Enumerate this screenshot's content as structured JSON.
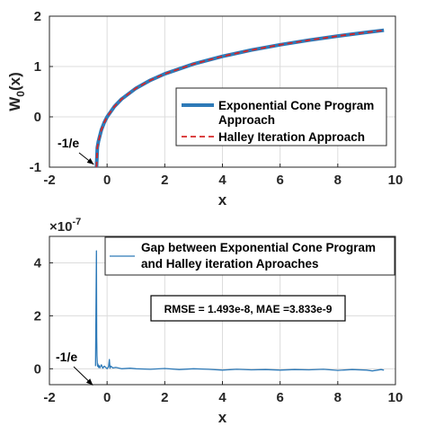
{
  "chart_data": [
    {
      "type": "line",
      "xlabel": "x",
      "ylabel": "W",
      "ylabel_sub": "0",
      "ylabel_suffix": "(x)",
      "xlim": [
        -2,
        10
      ],
      "ylim": [
        -1,
        2
      ],
      "xticks": [
        "-2",
        "0",
        "2",
        "4",
        "6",
        "8",
        "10"
      ],
      "yticks": [
        "-1",
        "0",
        "1",
        "2"
      ],
      "grid": true,
      "legend_position": "right",
      "series": [
        {
          "name_lines": [
            "Exponential Cone Program",
            "Approach"
          ],
          "color": "#2e7ab8",
          "style": "solid",
          "x": [
            -0.3679,
            -0.34,
            -0.3,
            -0.2,
            -0.1,
            0,
            0.25,
            0.5,
            1,
            1.5,
            2,
            3,
            4,
            5,
            6,
            7,
            8,
            9,
            9.6
          ],
          "y": [
            -1.0,
            -0.61,
            -0.489,
            -0.259,
            -0.112,
            0,
            0.204,
            0.352,
            0.567,
            0.726,
            0.853,
            1.05,
            1.202,
            1.327,
            1.432,
            1.524,
            1.606,
            1.679,
            1.72
          ]
        },
        {
          "name_lines": [
            "Halley Iteration Approach"
          ],
          "color": "#d62728",
          "style": "dashed",
          "x": [
            -0.3679,
            -0.34,
            -0.3,
            -0.2,
            -0.1,
            0,
            0.25,
            0.5,
            1,
            1.5,
            2,
            3,
            4,
            5,
            6,
            7,
            8,
            9,
            9.6
          ],
          "y": [
            -1.0,
            -0.61,
            -0.489,
            -0.259,
            -0.112,
            0,
            0.204,
            0.352,
            0.567,
            0.726,
            0.853,
            1.05,
            1.202,
            1.327,
            1.432,
            1.524,
            1.606,
            1.679,
            1.72
          ]
        }
      ],
      "annotations": [
        {
          "text": "-1/e",
          "points_to": [
            -0.3679,
            -1
          ]
        }
      ]
    },
    {
      "type": "line",
      "xlabel": "x",
      "ylabel": "",
      "exponent_label": "×10",
      "exponent_power": "-7",
      "xlim": [
        -2,
        10
      ],
      "ylim": [
        -0.6,
        5
      ],
      "xticks": [
        "-2",
        "0",
        "2",
        "4",
        "6",
        "8",
        "10"
      ],
      "yticks": [
        "0",
        "2",
        "4"
      ],
      "grid": true,
      "legend_position": "top-right",
      "series": [
        {
          "name_lines": [
            "Gap between Exponential Cone Program",
            "and Halley iteration Aproaches"
          ],
          "color": "#2e7ab8",
          "style": "solid",
          "x": [
            -0.4,
            -0.37,
            -0.36,
            -0.35,
            -0.34,
            -0.33,
            -0.32,
            -0.3,
            -0.28,
            -0.25,
            -0.2,
            -0.15,
            -0.1,
            -0.05,
            0,
            0.05,
            0.08,
            0.1,
            0.13,
            0.2,
            0.3,
            0.5,
            0.8,
            1,
            1.5,
            2,
            2.5,
            3,
            3.5,
            4,
            4.5,
            5,
            5.5,
            6,
            6.5,
            7,
            7.5,
            8,
            8.5,
            9,
            9.2,
            9.5,
            9.6
          ],
          "y": [
            0.1,
            4.45,
            1.2,
            0.5,
            0.2,
            0.1,
            0.18,
            0.05,
            0.12,
            0.03,
            0.15,
            0.02,
            0.1,
            0.05,
            0.0,
            0.08,
            0.35,
            0.02,
            0.1,
            0.03,
            0.05,
            0.0,
            0.02,
            0.0,
            -0.02,
            0.01,
            -0.03,
            0.0,
            -0.02,
            -0.05,
            -0.02,
            -0.04,
            -0.03,
            -0.05,
            -0.03,
            -0.04,
            -0.02,
            -0.06,
            -0.03,
            -0.05,
            -0.08,
            -0.03,
            -0.05
          ]
        }
      ],
      "info_box": "RMSE = 1.493e-8, MAE =3.833e-9",
      "annotations": [
        {
          "text": "-1/e",
          "points_to": [
            -0.3679,
            -0.35
          ]
        }
      ]
    }
  ]
}
